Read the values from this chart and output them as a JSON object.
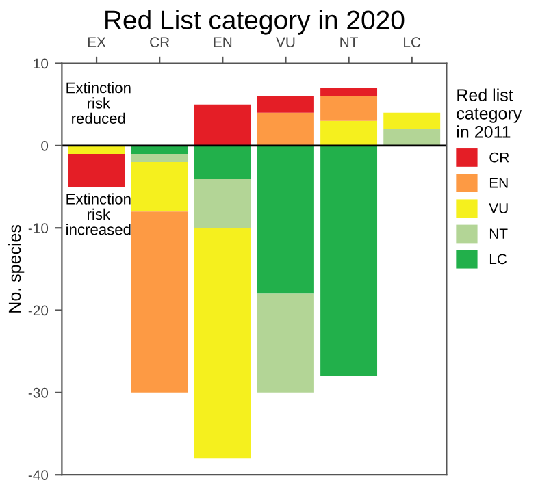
{
  "chart_data": {
    "type": "bar",
    "title": "Red List category in 2020",
    "ylabel": "No. species",
    "legend_title": "Red list\ncategory\nin 2011",
    "categories": [
      "EX",
      "CR",
      "EN",
      "VU",
      "NT",
      "LC"
    ],
    "stacked": true,
    "series": [
      {
        "name": "LC",
        "color": "#22b04b",
        "values": [
          null,
          -1,
          -4,
          -18,
          -28,
          null
        ]
      },
      {
        "name": "NT",
        "color": "#b3d596",
        "values": [
          null,
          -1,
          -6,
          -12,
          null,
          2
        ]
      },
      {
        "name": "VU",
        "color": "#f5f01e",
        "values": [
          -1,
          -6,
          -28,
          null,
          3,
          2
        ]
      },
      {
        "name": "EN",
        "color": "#fd9a44",
        "values": [
          null,
          -22,
          null,
          4,
          3,
          null
        ]
      },
      {
        "name": "CR",
        "color": "#e41e26",
        "values": [
          -4,
          null,
          5,
          2,
          1,
          null
        ]
      }
    ],
    "ylim": [
      -40,
      10
    ],
    "yticks": [
      -40,
      -30,
      -20,
      -10,
      0,
      10
    ],
    "ref_lines": [
      {
        "axis": "y",
        "value": 0,
        "color": "#000000"
      }
    ],
    "annotations": [
      "Extinction\nrisk\nreduced",
      "Extinction\nrisk\nincreased"
    ],
    "grid": false,
    "legend": "right"
  }
}
